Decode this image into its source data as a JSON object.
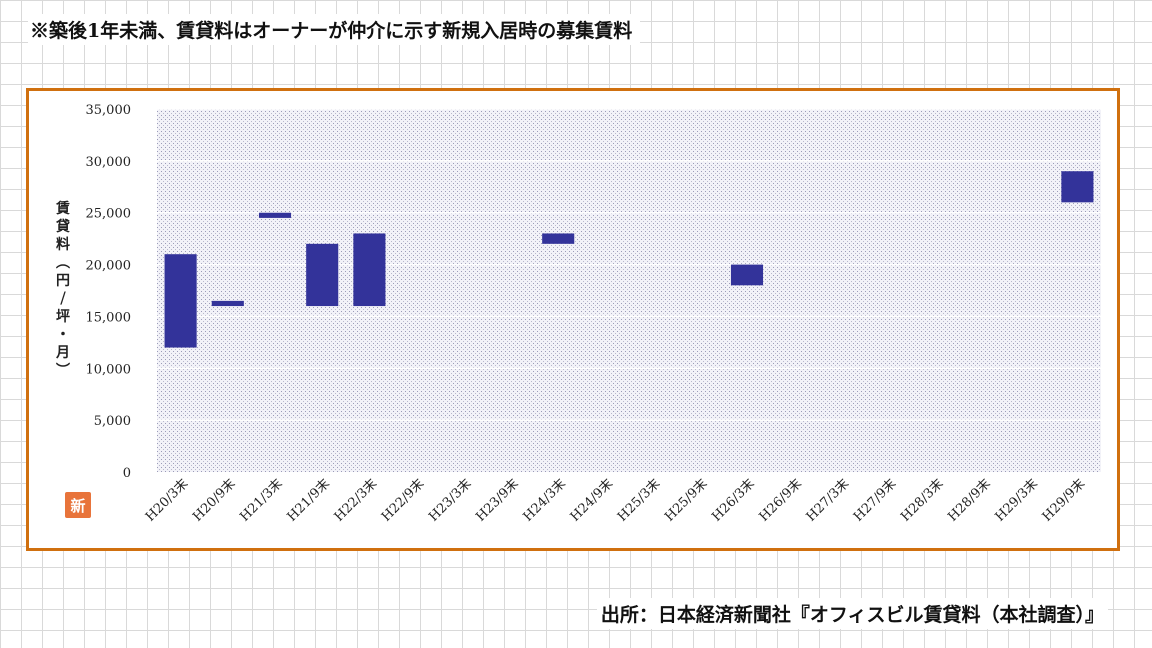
{
  "header": {
    "note": "※築後1年未満、賃貸料はオーナーが仲介に示す新規入居時の募集賃料"
  },
  "footer": {
    "source": "出所：日本経済新聞社『オフィスビル賃貸料（本社調査）』"
  },
  "badge": {
    "label": "新",
    "color": "#e8743b"
  },
  "chart_data": {
    "type": "bar",
    "subtype": "floating-range",
    "title": "",
    "xlabel": "",
    "ylabel": "賃貸料（円／坪・月）",
    "ylim": [
      0,
      35000
    ],
    "yticks": [
      0,
      5000,
      10000,
      15000,
      20000,
      25000,
      30000,
      35000
    ],
    "ytick_labels": [
      "0",
      "5,000",
      "10,000",
      "15,000",
      "20,000",
      "25,000",
      "30,000",
      "35,000"
    ],
    "grid": true,
    "legend": "none",
    "bar_color": "#33339a",
    "categories": [
      "H20/3末",
      "H20/9末",
      "H21/3末",
      "H21/9末",
      "H22/3末",
      "H22/9末",
      "H23/3末",
      "H23/9末",
      "H24/3末",
      "H24/9末",
      "H25/3末",
      "H25/9末",
      "H26/3末",
      "H26/9末",
      "H27/3末",
      "H27/9末",
      "H28/3末",
      "H28/9末",
      "H29/3末",
      "H29/9末"
    ],
    "low": [
      12000,
      16000,
      24500,
      16000,
      16000,
      null,
      null,
      null,
      22000,
      null,
      null,
      null,
      18000,
      null,
      null,
      null,
      null,
      null,
      null,
      26000
    ],
    "high": [
      21000,
      16500,
      25000,
      22000,
      23000,
      null,
      null,
      null,
      23000,
      null,
      null,
      null,
      20000,
      null,
      null,
      null,
      null,
      null,
      null,
      29000
    ]
  }
}
